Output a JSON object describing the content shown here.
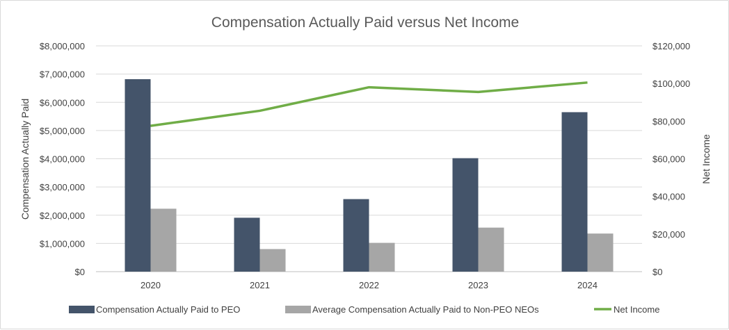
{
  "chart_data": {
    "type": "bar",
    "title": "Compensation Actually Paid versus Net Income",
    "categories": [
      "2020",
      "2021",
      "2022",
      "2023",
      "2024"
    ],
    "ylabel": "Compensation Actually Paid",
    "y2label": "Net Income",
    "ylim": [
      0,
      8000000
    ],
    "y2lim": [
      0,
      120000
    ],
    "y_ticks": [
      "$0",
      "$1,000,000",
      "$2,000,000",
      "$3,000,000",
      "$4,000,000",
      "$5,000,000",
      "$6,000,000",
      "$7,000,000",
      "$8,000,000"
    ],
    "y2_ticks": [
      "$0",
      "$20,000",
      "$40,000",
      "$60,000",
      "$80,000",
      "$100,000",
      "$120,000"
    ],
    "grid": true,
    "legend_position": "bottom",
    "series": [
      {
        "name": "Compensation Actually Paid to PEO",
        "type": "bar",
        "axis": "left",
        "color": "#44546a",
        "values": [
          6820000,
          1910000,
          2570000,
          4020000,
          5650000
        ]
      },
      {
        "name": "Average Compensation Actually Paid to Non-PEO NEOs",
        "type": "bar",
        "axis": "left",
        "color": "#a6a6a6",
        "values": [
          2230000,
          800000,
          1020000,
          1560000,
          1350000
        ]
      },
      {
        "name": "Net Income",
        "type": "line",
        "axis": "right",
        "color": "#70ad47",
        "values": [
          77500,
          85500,
          98000,
          95500,
          100500
        ]
      }
    ]
  }
}
